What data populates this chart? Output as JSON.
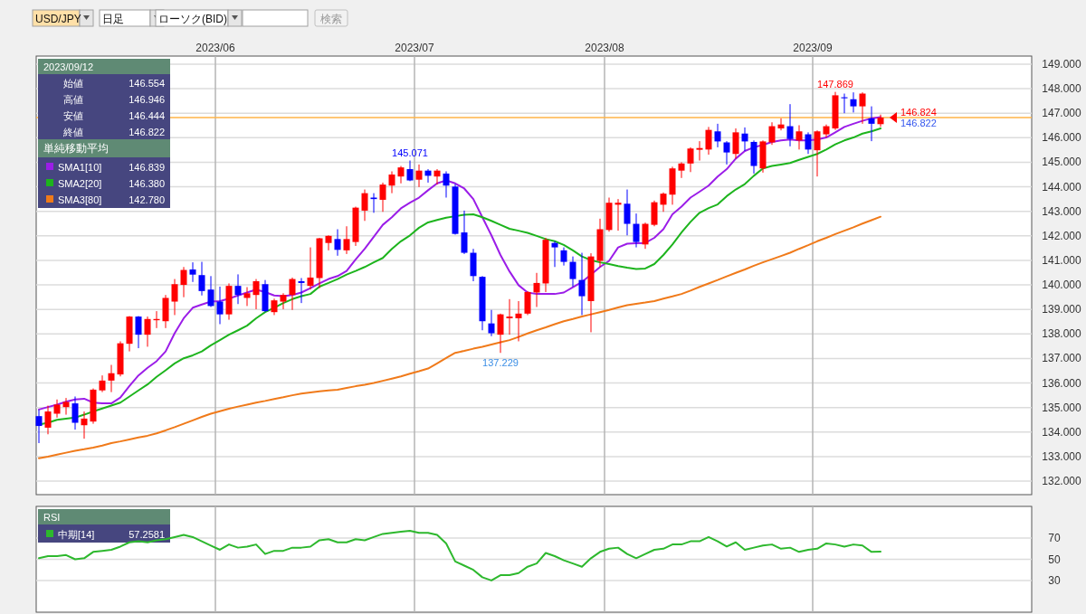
{
  "chart_data": [
    {
      "type": "candlestick",
      "categories": [
        null,
        null,
        null,
        null,
        null,
        null,
        null,
        null,
        null,
        null,
        null,
        null,
        null,
        null,
        null,
        null,
        null,
        null,
        null,
        null,
        "2023/06",
        null,
        null,
        null,
        null,
        null,
        null,
        null,
        null,
        null,
        null,
        null,
        null,
        null,
        null,
        null,
        null,
        null,
        null,
        null,
        null,
        null,
        "2023/07",
        null,
        null,
        null,
        null,
        null,
        null,
        null,
        null,
        null,
        null,
        null,
        null,
        null,
        null,
        null,
        null,
        null,
        null,
        null,
        null,
        "2023/08",
        null,
        null,
        null,
        null,
        null,
        null,
        null,
        null,
        null,
        null,
        null,
        null,
        null,
        null,
        null,
        null,
        null,
        null,
        null,
        null,
        null,
        null,
        "2023/09",
        null,
        null,
        null,
        null,
        null,
        null,
        null
      ],
      "ohlc": [
        [
          134.65,
          134.9,
          133.55,
          134.25
        ],
        [
          134.18,
          135.08,
          133.91,
          134.84
        ],
        [
          134.75,
          135.33,
          134.59,
          135.12
        ],
        [
          135.02,
          135.39,
          134.71,
          135.23
        ],
        [
          135.17,
          135.45,
          134.1,
          134.38
        ],
        [
          134.28,
          134.84,
          133.73,
          134.55
        ],
        [
          134.43,
          135.78,
          134.34,
          135.73
        ],
        [
          135.7,
          136.31,
          135.63,
          136.1
        ],
        [
          136.1,
          136.74,
          135.63,
          136.4
        ],
        [
          136.35,
          137.7,
          136.27,
          137.62
        ],
        [
          137.6,
          138.73,
          137.29,
          138.71
        ],
        [
          138.71,
          138.73,
          137.42,
          137.97
        ],
        [
          137.97,
          138.71,
          137.48,
          138.61
        ],
        [
          138.56,
          138.93,
          138.24,
          138.61
        ],
        [
          138.52,
          139.59,
          138.24,
          139.47
        ],
        [
          139.32,
          140.24,
          138.77,
          140.03
        ],
        [
          140.0,
          140.73,
          139.5,
          140.61
        ],
        [
          140.63,
          140.92,
          140.12,
          140.42
        ],
        [
          140.4,
          140.94,
          139.57,
          139.75
        ],
        [
          139.81,
          140.36,
          139.1,
          139.14
        ],
        [
          139.32,
          139.93,
          138.4,
          138.8
        ],
        [
          138.8,
          140.06,
          138.58,
          139.96
        ],
        [
          139.96,
          140.43,
          139.22,
          139.59
        ],
        [
          139.47,
          139.91,
          139.14,
          139.66
        ],
        [
          139.59,
          140.24,
          139.01,
          140.15
        ],
        [
          140.03,
          140.2,
          138.89,
          138.93
        ],
        [
          138.89,
          139.44,
          138.77,
          139.37
        ],
        [
          139.32,
          139.66,
          139.01,
          139.59
        ],
        [
          139.59,
          140.3,
          138.98,
          140.24
        ],
        [
          140.15,
          140.28,
          139.26,
          140.08
        ],
        [
          139.96,
          141.53,
          139.81,
          140.3
        ],
        [
          140.28,
          141.92,
          139.87,
          141.9
        ],
        [
          141.71,
          142.02,
          141.41,
          142.0
        ],
        [
          141.87,
          142.27,
          141.19,
          141.43
        ],
        [
          141.41,
          142.39,
          141.26,
          141.87
        ],
        [
          141.75,
          143.19,
          141.59,
          143.15
        ],
        [
          143.03,
          143.89,
          142.61,
          143.74
        ],
        [
          143.56,
          143.74,
          142.94,
          143.5
        ],
        [
          143.47,
          144.17,
          142.98,
          144.09
        ],
        [
          144.05,
          144.63,
          143.74,
          144.5
        ],
        [
          144.42,
          144.85,
          144.14,
          144.79
        ],
        [
          144.72,
          145.071,
          144.23,
          144.26
        ],
        [
          144.29,
          144.91,
          143.99,
          144.66
        ],
        [
          144.66,
          144.72,
          144.17,
          144.45
        ],
        [
          144.42,
          144.72,
          144.09,
          144.66
        ],
        [
          144.54,
          144.63,
          143.56,
          144.05
        ],
        [
          144.01,
          144.11,
          142.05,
          142.08
        ],
        [
          142.14,
          143.03,
          141.26,
          141.31
        ],
        [
          141.31,
          141.47,
          140.15,
          140.36
        ],
        [
          140.33,
          140.36,
          138.15,
          138.52
        ],
        [
          138.43,
          138.98,
          137.91,
          138.03
        ],
        [
          137.97,
          138.83,
          137.229,
          138.8
        ],
        [
          138.64,
          139.42,
          137.97,
          138.71
        ],
        [
          138.64,
          139.34,
          137.7,
          138.83
        ],
        [
          138.83,
          139.75,
          138.77,
          139.71
        ],
        [
          139.69,
          140.49,
          139.1,
          140.08
        ],
        [
          140.06,
          141.92,
          139.71,
          141.84
        ],
        [
          141.71,
          141.78,
          140.73,
          141.53
        ],
        [
          141.41,
          141.53,
          140.79,
          140.94
        ],
        [
          140.94,
          141.16,
          139.93,
          140.24
        ],
        [
          140.2,
          141.31,
          138.77,
          139.54
        ],
        [
          139.34,
          141.29,
          138.07,
          141.16
        ],
        [
          140.98,
          142.7,
          140.73,
          142.27
        ],
        [
          142.24,
          143.56,
          142.17,
          143.35
        ],
        [
          143.27,
          143.5,
          142.21,
          143.35
        ],
        [
          143.31,
          143.89,
          142.02,
          142.49
        ],
        [
          142.49,
          142.91,
          141.53,
          141.75
        ],
        [
          141.65,
          142.54,
          141.47,
          142.49
        ],
        [
          142.45,
          143.44,
          142.39,
          143.37
        ],
        [
          143.27,
          143.77,
          142.98,
          143.72
        ],
        [
          143.68,
          144.82,
          143.27,
          144.75
        ],
        [
          144.66,
          145.0,
          144.36,
          144.95
        ],
        [
          144.95,
          145.61,
          144.6,
          145.56
        ],
        [
          145.51,
          145.86,
          145.07,
          145.58
        ],
        [
          145.52,
          146.44,
          145.31,
          146.32
        ],
        [
          146.26,
          146.57,
          145.61,
          145.85
        ],
        [
          145.81,
          145.86,
          144.91,
          145.4
        ],
        [
          145.34,
          146.38,
          145.15,
          146.22
        ],
        [
          146.17,
          146.42,
          145.46,
          145.85
        ],
        [
          145.83,
          145.89,
          144.54,
          144.85
        ],
        [
          144.75,
          145.89,
          144.58,
          145.85
        ],
        [
          145.81,
          146.63,
          145.71,
          146.47
        ],
        [
          146.38,
          146.79,
          146.3,
          146.54
        ],
        [
          146.47,
          147.37,
          145.65,
          145.95
        ],
        [
          145.89,
          146.51,
          145.52,
          146.26
        ],
        [
          146.14,
          146.22,
          145.34,
          145.52
        ],
        [
          145.49,
          146.3,
          144.42,
          146.26
        ],
        [
          146.14,
          146.54,
          146.01,
          146.47
        ],
        [
          146.38,
          147.869,
          146.32,
          147.73
        ],
        [
          147.65,
          147.8,
          147.0,
          147.61
        ],
        [
          147.57,
          147.85,
          147.03,
          147.28
        ],
        [
          147.28,
          147.85,
          146.57,
          147.8
        ],
        [
          146.79,
          147.28,
          145.86,
          146.57
        ],
        [
          146.554,
          146.946,
          146.444,
          146.822
        ]
      ],
      "colors": [
        "#0000ff",
        "#ff0000",
        "#ff0000",
        "#ff0000",
        "#0000ff",
        "#ff0000",
        "#ff0000",
        "#ff0000",
        "#ff0000",
        "#ff0000",
        "#ff0000",
        "#0000ff",
        "#ff0000",
        "#ff0000",
        "#ff0000",
        "#ff0000",
        "#ff0000",
        "#0000ff",
        "#0000ff",
        "#0000ff",
        "#0000ff",
        "#ff0000",
        "#0000ff",
        "#ff0000",
        "#ff0000",
        "#0000ff",
        "#ff0000",
        "#ff0000",
        "#ff0000",
        "#0000ff",
        "#ff0000",
        "#ff0000",
        "#ff0000",
        "#0000ff",
        "#ff0000",
        "#ff0000",
        "#ff0000",
        "#0000ff",
        "#ff0000",
        "#ff0000",
        "#ff0000",
        "#0000ff",
        "#ff0000",
        "#0000ff",
        "#ff0000",
        "#0000ff",
        "#0000ff",
        "#0000ff",
        "#0000ff",
        "#0000ff",
        "#0000ff",
        "#ff0000",
        "#ff0000",
        "#ff0000",
        "#ff0000",
        "#ff0000",
        "#ff0000",
        "#0000ff",
        "#0000ff",
        "#0000ff",
        "#0000ff",
        "#ff0000",
        "#ff0000",
        "#ff0000",
        "#ff0000",
        "#0000ff",
        "#0000ff",
        "#ff0000",
        "#ff0000",
        "#ff0000",
        "#ff0000",
        "#ff0000",
        "#ff0000",
        "#ff0000",
        "#ff0000",
        "#0000ff",
        "#0000ff",
        "#ff0000",
        "#0000ff",
        "#0000ff",
        "#ff0000",
        "#ff0000",
        "#ff0000",
        "#0000ff",
        "#ff0000",
        "#0000ff",
        "#ff0000",
        "#ff0000",
        "#ff0000",
        "#0000ff",
        "#0000ff",
        "#ff0000",
        "#0000ff",
        "#ff0000"
      ],
      "series": [
        {
          "name": "SMA1[10]",
          "type": "line",
          "color": "#9b1de8",
          "values": [
            134.92,
            135.02,
            135.12,
            135.24,
            135.33,
            135.36,
            135.2,
            135.17,
            135.17,
            135.41,
            135.88,
            136.31,
            136.62,
            136.89,
            137.29,
            138.03,
            138.64,
            139.07,
            139.2,
            139.32,
            139.34,
            139.44,
            139.57,
            139.69,
            139.81,
            139.71,
            139.57,
            139.54,
            139.59,
            139.69,
            139.87,
            140.06,
            140.24,
            140.36,
            140.57,
            141.04,
            141.47,
            141.96,
            142.45,
            142.76,
            143.12,
            143.35,
            143.56,
            143.86,
            144.14,
            144.26,
            144.14,
            143.93,
            143.5,
            142.76,
            142.02,
            141.22,
            140.55,
            139.99,
            139.69,
            139.63,
            139.63,
            139.63,
            139.69,
            139.91,
            140.12,
            140.42,
            140.73,
            140.98,
            141.53,
            141.68,
            141.7,
            141.71,
            141.92,
            142.27,
            142.88,
            143.19,
            143.56,
            143.8,
            144.05,
            144.42,
            144.72,
            145.15,
            145.46,
            145.61,
            145.71,
            145.83,
            145.89,
            145.93,
            145.89,
            145.89,
            145.93,
            146.01,
            146.22,
            146.44,
            146.57,
            146.69,
            146.79,
            146.839
          ]
        },
        {
          "name": "SMA2[20]",
          "type": "line",
          "color": "#1db41d",
          "values": [
            134.31,
            134.38,
            134.5,
            134.55,
            134.59,
            134.71,
            134.84,
            134.96,
            135.08,
            135.2,
            135.45,
            135.7,
            135.94,
            136.25,
            136.52,
            136.8,
            137.01,
            137.13,
            137.29,
            137.54,
            137.75,
            137.97,
            138.15,
            138.34,
            138.64,
            138.89,
            139.07,
            139.26,
            139.42,
            139.54,
            139.63,
            139.93,
            140.08,
            140.24,
            140.42,
            140.57,
            140.73,
            140.92,
            141.1,
            141.47,
            141.78,
            142.02,
            142.33,
            142.55,
            142.65,
            142.74,
            142.8,
            142.86,
            142.88,
            142.76,
            142.61,
            142.45,
            142.29,
            142.21,
            142.12,
            142.0,
            141.87,
            141.78,
            141.63,
            141.41,
            141.16,
            141.01,
            140.92,
            140.85,
            140.77,
            140.7,
            140.65,
            140.67,
            140.85,
            141.22,
            141.65,
            142.14,
            142.57,
            142.94,
            143.13,
            143.28,
            143.62,
            143.89,
            144.11,
            144.45,
            144.75,
            144.85,
            144.91,
            144.97,
            145.1,
            145.22,
            145.34,
            145.52,
            145.73,
            145.89,
            146.01,
            146.17,
            146.26,
            146.38
          ]
        },
        {
          "name": "SMA3[80]",
          "type": "line",
          "color": "#f07a1a",
          "values": [
            132.93,
            133.0,
            133.08,
            133.16,
            133.24,
            133.3,
            133.37,
            133.45,
            133.55,
            133.62,
            133.7,
            133.78,
            133.85,
            133.95,
            134.07,
            134.2,
            134.34,
            134.48,
            134.62,
            134.75,
            134.85,
            134.95,
            135.04,
            135.12,
            135.2,
            135.27,
            135.35,
            135.42,
            135.5,
            135.57,
            135.62,
            135.66,
            135.7,
            135.73,
            135.8,
            135.87,
            135.93,
            136.0,
            136.09,
            136.18,
            136.27,
            136.38,
            136.48,
            136.59,
            136.8,
            137.02,
            137.23,
            137.31,
            137.4,
            137.48,
            137.57,
            137.66,
            137.75,
            137.88,
            138.02,
            138.15,
            138.27,
            138.4,
            138.52,
            138.61,
            138.71,
            138.8,
            138.89,
            138.98,
            139.08,
            139.17,
            139.23,
            139.28,
            139.34,
            139.44,
            139.53,
            139.63,
            139.77,
            139.92,
            140.06,
            140.2,
            140.35,
            140.49,
            140.63,
            140.78,
            140.92,
            141.05,
            141.18,
            141.31,
            141.47,
            141.62,
            141.78,
            141.92,
            142.07,
            142.21,
            142.35,
            142.5,
            142.64,
            142.78
          ]
        }
      ],
      "ylim": [
        131.45,
        149.33
      ],
      "yticks": [
        {
          "value": 132,
          "label": "132.000"
        },
        {
          "value": 133,
          "label": "133.000"
        },
        {
          "value": 134,
          "label": "134.000"
        },
        {
          "value": 135,
          "label": "135.000"
        },
        {
          "value": 136,
          "label": "136.000"
        },
        {
          "value": 137,
          "label": "137.000"
        },
        {
          "value": 138,
          "label": "138.000"
        },
        {
          "value": 139,
          "label": "139.000"
        },
        {
          "value": 140,
          "label": "140.000"
        },
        {
          "value": 141,
          "label": "141.000"
        },
        {
          "value": 142,
          "label": "142.000"
        },
        {
          "value": 143,
          "label": "143.000"
        },
        {
          "value": 144,
          "label": "144.000"
        },
        {
          "value": 145,
          "label": "145.000"
        },
        {
          "value": 146,
          "label": "146.000"
        },
        {
          "value": 147,
          "label": "147.000"
        },
        {
          "value": 148,
          "label": "148.000"
        },
        {
          "value": 149,
          "label": "149.000"
        }
      ],
      "grid": true,
      "legend": "top left",
      "ref_lines": [
        {
          "axis": "y",
          "value": 146.824,
          "label": "146.824",
          "color": "#ffb347"
        }
      ],
      "annotations": [
        "USD/JPY",
        "日足",
        "ローソク(BID)",
        "検索",
        "2023/09/12",
        "始値",
        "146.554",
        "高値",
        "146.946",
        "安値",
        "146.444",
        "終値",
        "146.822",
        "単純移動平均",
        "146.839",
        "146.380",
        "142.780",
        {
          "text": "145.071",
          "y": 145.071
        },
        {
          "text": "137.229",
          "y": 137.229
        },
        {
          "text": "147.869",
          "y": 147.869
        },
        {
          "text": "146.822",
          "y": 146.822
        }
      ]
    },
    {
      "type": "line",
      "title": "RSI",
      "categories": [
        null,
        null,
        null,
        null,
        null,
        null,
        null,
        null,
        null,
        null,
        null,
        null,
        null,
        null,
        null,
        null,
        null,
        null,
        null,
        null,
        null,
        null,
        null,
        null,
        null,
        null,
        null,
        null,
        null,
        null,
        null,
        null,
        null,
        null,
        null,
        null,
        null,
        null,
        null,
        null,
        null,
        null,
        null,
        null,
        null,
        null,
        null,
        null,
        null,
        null,
        null,
        null,
        null,
        null,
        null,
        null,
        null,
        null,
        null,
        null,
        null,
        null,
        null,
        null,
        null,
        null,
        null,
        null,
        null,
        null,
        null,
        null,
        null,
        null,
        null,
        null,
        null,
        null,
        null,
        null,
        null,
        null,
        null,
        null,
        null,
        null,
        null,
        null,
        null,
        null,
        null,
        null,
        null,
        null
      ],
      "series": [
        {
          "name": "中期[14]",
          "color": "#2db82d",
          "values": [
            51,
            53,
            53,
            54,
            50,
            51,
            57,
            58,
            59,
            62,
            66,
            67,
            66,
            68,
            69,
            71,
            73,
            71,
            67,
            63,
            59,
            64,
            61,
            62,
            64,
            55,
            58,
            58,
            61,
            61,
            62,
            68,
            69,
            66,
            66,
            69,
            68,
            71,
            74,
            75,
            76,
            77,
            75,
            75,
            73,
            65,
            48,
            44,
            40,
            33,
            30,
            35,
            35,
            37,
            43,
            46,
            56,
            53,
            49,
            46,
            43,
            51,
            57,
            60,
            61,
            55,
            51,
            55,
            59,
            60,
            64,
            64,
            67,
            67,
            71,
            67,
            62,
            66,
            59,
            61,
            63,
            64,
            60,
            61,
            57,
            59,
            60,
            65,
            64,
            62,
            64,
            63,
            57,
            57.2581
          ]
        }
      ],
      "ylim": [
        0,
        100
      ],
      "yticks": [
        30,
        50,
        70
      ],
      "grid": true,
      "tick_labels": "y",
      "legend": "top left",
      "annotations": [
        "57.2581"
      ]
    }
  ]
}
